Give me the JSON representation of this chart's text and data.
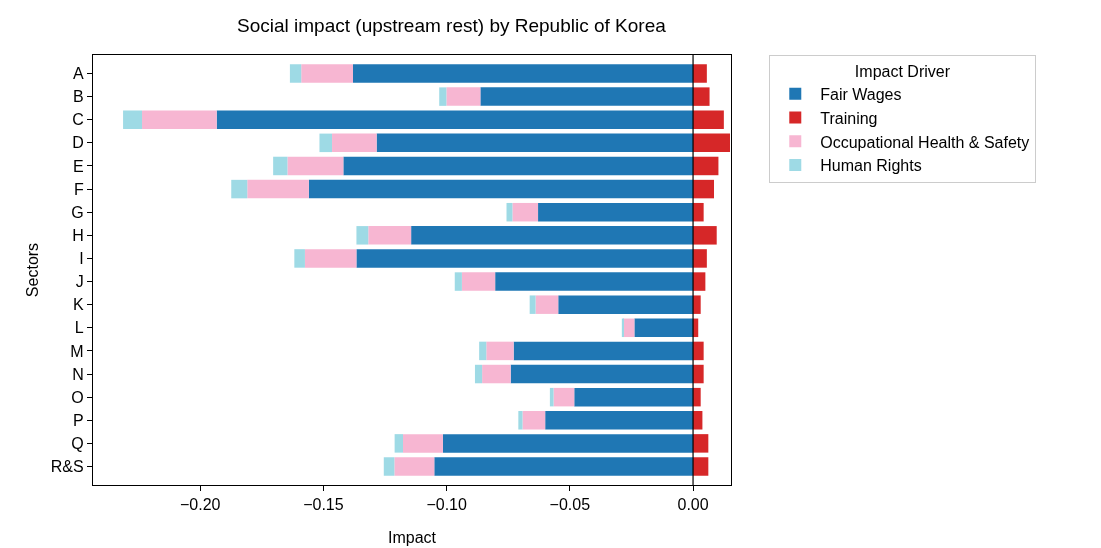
{
  "chart_data": {
    "type": "bar",
    "orientation": "horizontal",
    "stacked": true,
    "title": "Social impact (upstream rest) by Republic of Korea",
    "xlabel": "Impact",
    "ylabel": "Sectors",
    "legend_title": "Impact Driver",
    "legend": "top right",
    "grid": false,
    "categories": [
      "A",
      "B",
      "C",
      "D",
      "E",
      "F",
      "G",
      "H",
      "I",
      "J",
      "K",
      "L",
      "M",
      "N",
      "O",
      "P",
      "Q",
      "R&S"
    ],
    "series": [
      {
        "name": "Fair Wages",
        "color": "#1f77b4",
        "values": [
          -0.138,
          -0.0863,
          -0.1933,
          -0.1284,
          -0.1419,
          -0.1559,
          -0.0629,
          -0.1144,
          -0.1366,
          -0.0803,
          -0.0547,
          -0.0238,
          -0.0728,
          -0.074,
          -0.0482,
          -0.06,
          -0.1015,
          -0.105
        ]
      },
      {
        "name": "Training",
        "color": "#d62728",
        "values": [
          0.0056,
          0.0067,
          0.0125,
          0.015,
          0.0103,
          0.0085,
          0.0043,
          0.0096,
          0.0056,
          0.005,
          0.0031,
          0.0021,
          0.0043,
          0.0043,
          0.0031,
          0.0038,
          0.0062,
          0.0062
        ]
      },
      {
        "name": "Occupational Health & Safety",
        "color": "#f7b6d2",
        "values": [
          -0.021,
          -0.0138,
          -0.0303,
          -0.0181,
          -0.0227,
          -0.025,
          -0.0104,
          -0.0174,
          -0.0209,
          -0.0135,
          -0.0092,
          -0.0046,
          -0.0111,
          -0.0116,
          -0.0084,
          -0.0092,
          -0.0162,
          -0.0162
        ]
      },
      {
        "name": "Human Rights",
        "color": "#9edae5",
        "values": [
          -0.0046,
          -0.0029,
          -0.0077,
          -0.0051,
          -0.0058,
          -0.0065,
          -0.0024,
          -0.0048,
          -0.0043,
          -0.0029,
          -0.0024,
          -0.0005,
          -0.0029,
          -0.0029,
          -0.0015,
          -0.0017,
          -0.0034,
          -0.0043
        ]
      }
    ],
    "xlim": [
      -0.2435,
      0.0154
    ],
    "xticks": [
      {
        "value": -0.2,
        "label": "−0.20"
      },
      {
        "value": -0.15,
        "label": "−0.15"
      },
      {
        "value": -0.1,
        "label": "−0.10"
      },
      {
        "value": -0.05,
        "label": "−0.05"
      },
      {
        "value": 0,
        "label": "0.00"
      }
    ],
    "ref_lines": [
      {
        "axis": "x",
        "value": 0,
        "color": "#000000"
      }
    ]
  }
}
